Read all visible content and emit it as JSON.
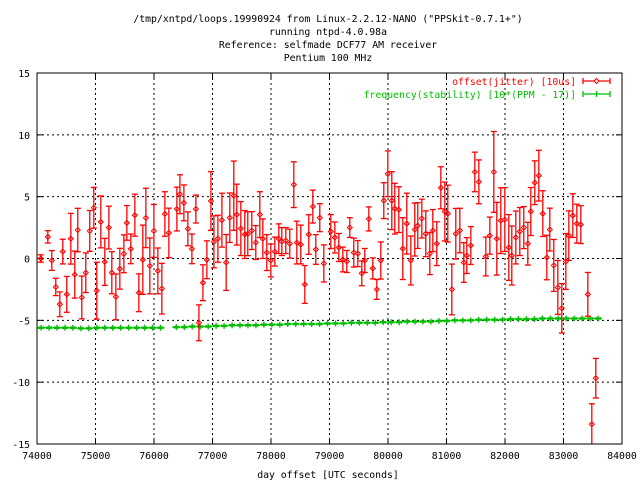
{
  "chart_data": {
    "type": "scatter",
    "title_lines": [
      "/tmp/xntpd/loops.19990924 from Linux-2.2.12-NANO (\"PPSkit-0.7.1+\")",
      "running ntpd-4.0.98a",
      "Reference: selfmade DCF77 AM receiver",
      "Pentium 100 MHz"
    ],
    "xlabel": "day offset [UTC seconds]",
    "ylabel": "",
    "xlim": [
      74000,
      84000
    ],
    "ylim": [
      -15,
      15
    ],
    "xticks": [
      "74000",
      "75000",
      "76000",
      "77000",
      "78000",
      "79000",
      "80000",
      "81000",
      "82000",
      "83000",
      "84000"
    ],
    "yticks": [
      "-15",
      "-10",
      "-5",
      "0",
      "5",
      "10",
      "15"
    ],
    "grid": true,
    "legend_position": "top-right",
    "series": [
      {
        "name": "offset(jitter) [10us]",
        "color": "#ff0000",
        "style": "errorbars-diamond",
        "points": [
          [
            74065,
            0.0,
            0.3
          ],
          [
            74185,
            1.75,
            0.5
          ],
          [
            74253,
            -0.16,
            0.8
          ],
          [
            74321,
            -2.3,
            0.7
          ],
          [
            74390,
            -3.7,
            1.0
          ],
          [
            74441,
            0.56,
            1.0
          ],
          [
            74509,
            -2.9,
            1.45
          ],
          [
            74578,
            1.6,
            2.05
          ],
          [
            74646,
            -1.3,
            1.9
          ],
          [
            74697,
            2.3,
            1.76
          ],
          [
            74766,
            -3.15,
            1.73
          ],
          [
            74834,
            -1.15,
            1.6
          ],
          [
            74902,
            2.23,
            1.65
          ],
          [
            74971,
            4.1,
            1.65
          ],
          [
            75022,
            -2.6,
            2.3
          ],
          [
            75091,
            2.96,
            2.1
          ],
          [
            75159,
            -0.27,
            1.9
          ],
          [
            75228,
            2.5,
            1.73
          ],
          [
            75279,
            -1.15,
            1.7
          ],
          [
            75348,
            -3.1,
            1.85
          ],
          [
            75416,
            -0.83,
            1.65
          ],
          [
            75485,
            0.38,
            1.53
          ],
          [
            75536,
            2.88,
            1.4
          ],
          [
            75604,
            0.78,
            1.2
          ],
          [
            75673,
            3.5,
            1.7
          ],
          [
            75741,
            -2.77,
            1.53
          ],
          [
            75809,
            -0.1,
            2.8
          ],
          [
            75861,
            3.28,
            2.4
          ],
          [
            75929,
            -0.6,
            2.26
          ],
          [
            75998,
            2.23,
            2.14
          ],
          [
            76066,
            -1.0,
            1.85
          ],
          [
            76134,
            -2.44,
            2.05
          ],
          [
            76186,
            3.6,
            1.8
          ],
          [
            76254,
            2.07,
            2.0
          ],
          [
            76391,
            4.0,
            1.77
          ],
          [
            76443,
            5.2,
            1.57
          ],
          [
            76511,
            4.5,
            1.45
          ],
          [
            76579,
            2.4,
            1.37
          ],
          [
            76648,
            0.78,
            1.2
          ],
          [
            76716,
            4.0,
            1.13
          ],
          [
            76768,
            -5.2,
            1.45
          ],
          [
            76836,
            -1.96,
            1.45
          ],
          [
            76904,
            -0.1,
            1.53
          ],
          [
            76973,
            4.65,
            2.38
          ],
          [
            77024,
            1.35,
            2.1
          ],
          [
            77092,
            1.6,
            1.9
          ],
          [
            77161,
            3.1,
            2.18
          ],
          [
            77234,
            -0.32,
            2.26
          ],
          [
            77296,
            3.3,
            2.0
          ],
          [
            77364,
            5.08,
            2.8
          ],
          [
            77415,
            3.55,
            2.46
          ],
          [
            77484,
            2.42,
            2.18
          ],
          [
            77552,
            1.94,
            1.94
          ],
          [
            77603,
            2.0,
            1.77
          ],
          [
            77672,
            2.26,
            1.53
          ],
          [
            77740,
            1.29,
            1.37
          ],
          [
            77809,
            3.55,
            1.85
          ],
          [
            77860,
            1.6,
            1.6
          ],
          [
            77928,
            0.48,
            1.45
          ],
          [
            77997,
            -0.16,
            1.33
          ],
          [
            78065,
            0.56,
            1.17
          ],
          [
            78133,
            1.6,
            1.2
          ],
          [
            78185,
            1.37,
            1.13
          ],
          [
            78253,
            1.45,
            1.05
          ],
          [
            78321,
            1.2,
            1.17
          ],
          [
            78390,
            5.97,
            1.85
          ],
          [
            78441,
            1.29,
            1.73
          ],
          [
            78509,
            1.13,
            1.57
          ],
          [
            78578,
            -2.1,
            1.53
          ],
          [
            78646,
            1.94,
            1.6
          ],
          [
            78715,
            4.2,
            1.33
          ],
          [
            78766,
            0.73,
            1.2
          ],
          [
            78834,
            3.3,
            1.13
          ],
          [
            78903,
            -0.4,
            1.5
          ],
          [
            79022,
            2.18,
            1.37
          ],
          [
            79091,
            1.7,
            1.25
          ],
          [
            79159,
            0.89,
            1.13
          ],
          [
            79228,
            -0.08,
            1.0
          ],
          [
            79296,
            -0.24,
            0.89
          ],
          [
            79347,
            2.5,
            0.8
          ],
          [
            79415,
            0.48,
            1.17
          ],
          [
            79484,
            0.4,
            1.05
          ],
          [
            79552,
            -1.2,
            1.0
          ],
          [
            79603,
            -0.16,
            0.97
          ],
          [
            79672,
            3.2,
            0.97
          ],
          [
            79740,
            -0.8,
            0.85
          ],
          [
            79809,
            -2.5,
            0.8
          ],
          [
            79877,
            -0.16,
            1.5
          ],
          [
            79928,
            4.68,
            1.45
          ],
          [
            79997,
            6.85,
            1.85
          ],
          [
            80065,
            4.68,
            2.34
          ],
          [
            80116,
            4.03,
            2.05
          ],
          [
            80185,
            3.95,
            1.85
          ],
          [
            80253,
            0.8,
            2.5
          ],
          [
            80321,
            2.82,
            2.46
          ],
          [
            80390,
            -0.16,
            1.98
          ],
          [
            80458,
            2.34,
            2.14
          ],
          [
            80509,
            2.66,
            1.85
          ],
          [
            80578,
            3.23,
            1.57
          ],
          [
            80646,
            2.0,
            1.85
          ],
          [
            80715,
            0.4,
            1.7
          ],
          [
            80766,
            2.26,
            1.7
          ],
          [
            80834,
            1.2,
            1.77
          ],
          [
            80903,
            5.72,
            1.7
          ],
          [
            80971,
            3.8,
            2.38
          ],
          [
            81022,
            3.63,
            2.3
          ],
          [
            81091,
            -2.5,
            2.05
          ],
          [
            81159,
            2.0,
            2.05
          ],
          [
            81228,
            2.26,
            1.8
          ],
          [
            81296,
            -0.32,
            1.6
          ],
          [
            81347,
            0.24,
            1.45
          ],
          [
            81416,
            1.05,
            1.53
          ],
          [
            81484,
            7.0,
            1.6
          ],
          [
            81553,
            6.2,
            1.77
          ],
          [
            81672,
            0.16,
            1.57
          ],
          [
            81741,
            1.85,
            1.5
          ],
          [
            81809,
            7.0,
            3.27
          ],
          [
            81860,
            1.6,
            2.94
          ],
          [
            81928,
            3.06,
            2.66
          ],
          [
            81997,
            3.15,
            2.58
          ],
          [
            82065,
            0.89,
            2.66
          ],
          [
            82116,
            0.24,
            2.38
          ],
          [
            82185,
            1.7,
            2.14
          ],
          [
            82253,
            2.18,
            1.94
          ],
          [
            82321,
            2.5,
            1.7
          ],
          [
            82390,
            1.2,
            1.73
          ],
          [
            82441,
            3.8,
            1.94
          ],
          [
            82509,
            6.13,
            1.77
          ],
          [
            82578,
            6.7,
            2.05
          ],
          [
            82646,
            3.63,
            1.85
          ],
          [
            82715,
            0.08,
            1.8
          ],
          [
            82766,
            2.34,
            1.73
          ],
          [
            82834,
            -0.56,
            2.1
          ],
          [
            82903,
            -2.34,
            2.18
          ],
          [
            82971,
            -4.03,
            2.0
          ],
          [
            83040,
            -0.24,
            2.26
          ],
          [
            83091,
            1.85,
            2.0
          ],
          [
            83159,
            3.47,
            1.77
          ],
          [
            83228,
            2.82,
            1.57
          ],
          [
            83296,
            2.74,
            1.53
          ],
          [
            83416,
            -2.9,
            1.77
          ],
          [
            83484,
            -13.4,
            1.65
          ],
          [
            83552,
            -9.68,
            1.6
          ]
        ]
      },
      {
        "name": "frequency(stability) [10*(PPM - 17)]",
        "color": "#00c000",
        "style": "errorbars-plus",
        "x_start": 74070,
        "x_step": 136,
        "error": 0.05,
        "values": [
          -5.6,
          -5.6,
          -5.6,
          -5.6,
          -5.6,
          -5.65,
          -5.65,
          -5.6,
          -5.6,
          -5.6,
          -5.6,
          -5.6,
          -5.6,
          -5.6,
          -5.6,
          -5.6,
          null,
          -5.55,
          -5.55,
          -5.5,
          -5.5,
          -5.5,
          -5.45,
          -5.45,
          -5.4,
          -5.4,
          -5.4,
          -5.4,
          -5.35,
          -5.35,
          -5.35,
          -5.3,
          -5.3,
          -5.3,
          -5.3,
          -5.3,
          -5.25,
          -5.25,
          -5.25,
          -5.2,
          -5.2,
          -5.2,
          -5.2,
          -5.15,
          -5.15,
          -5.15,
          -5.1,
          -5.1,
          -5.1,
          -5.1,
          -5.05,
          -5.05,
          -5.0,
          -5.0,
          -5.0,
          -4.95,
          -4.95,
          -4.95,
          -4.95,
          -4.9,
          -4.9,
          -4.9,
          -4.9,
          -4.85,
          -4.85,
          -4.85,
          -4.85,
          -4.85,
          -4.85,
          -4.85,
          -4.85
        ]
      }
    ]
  }
}
